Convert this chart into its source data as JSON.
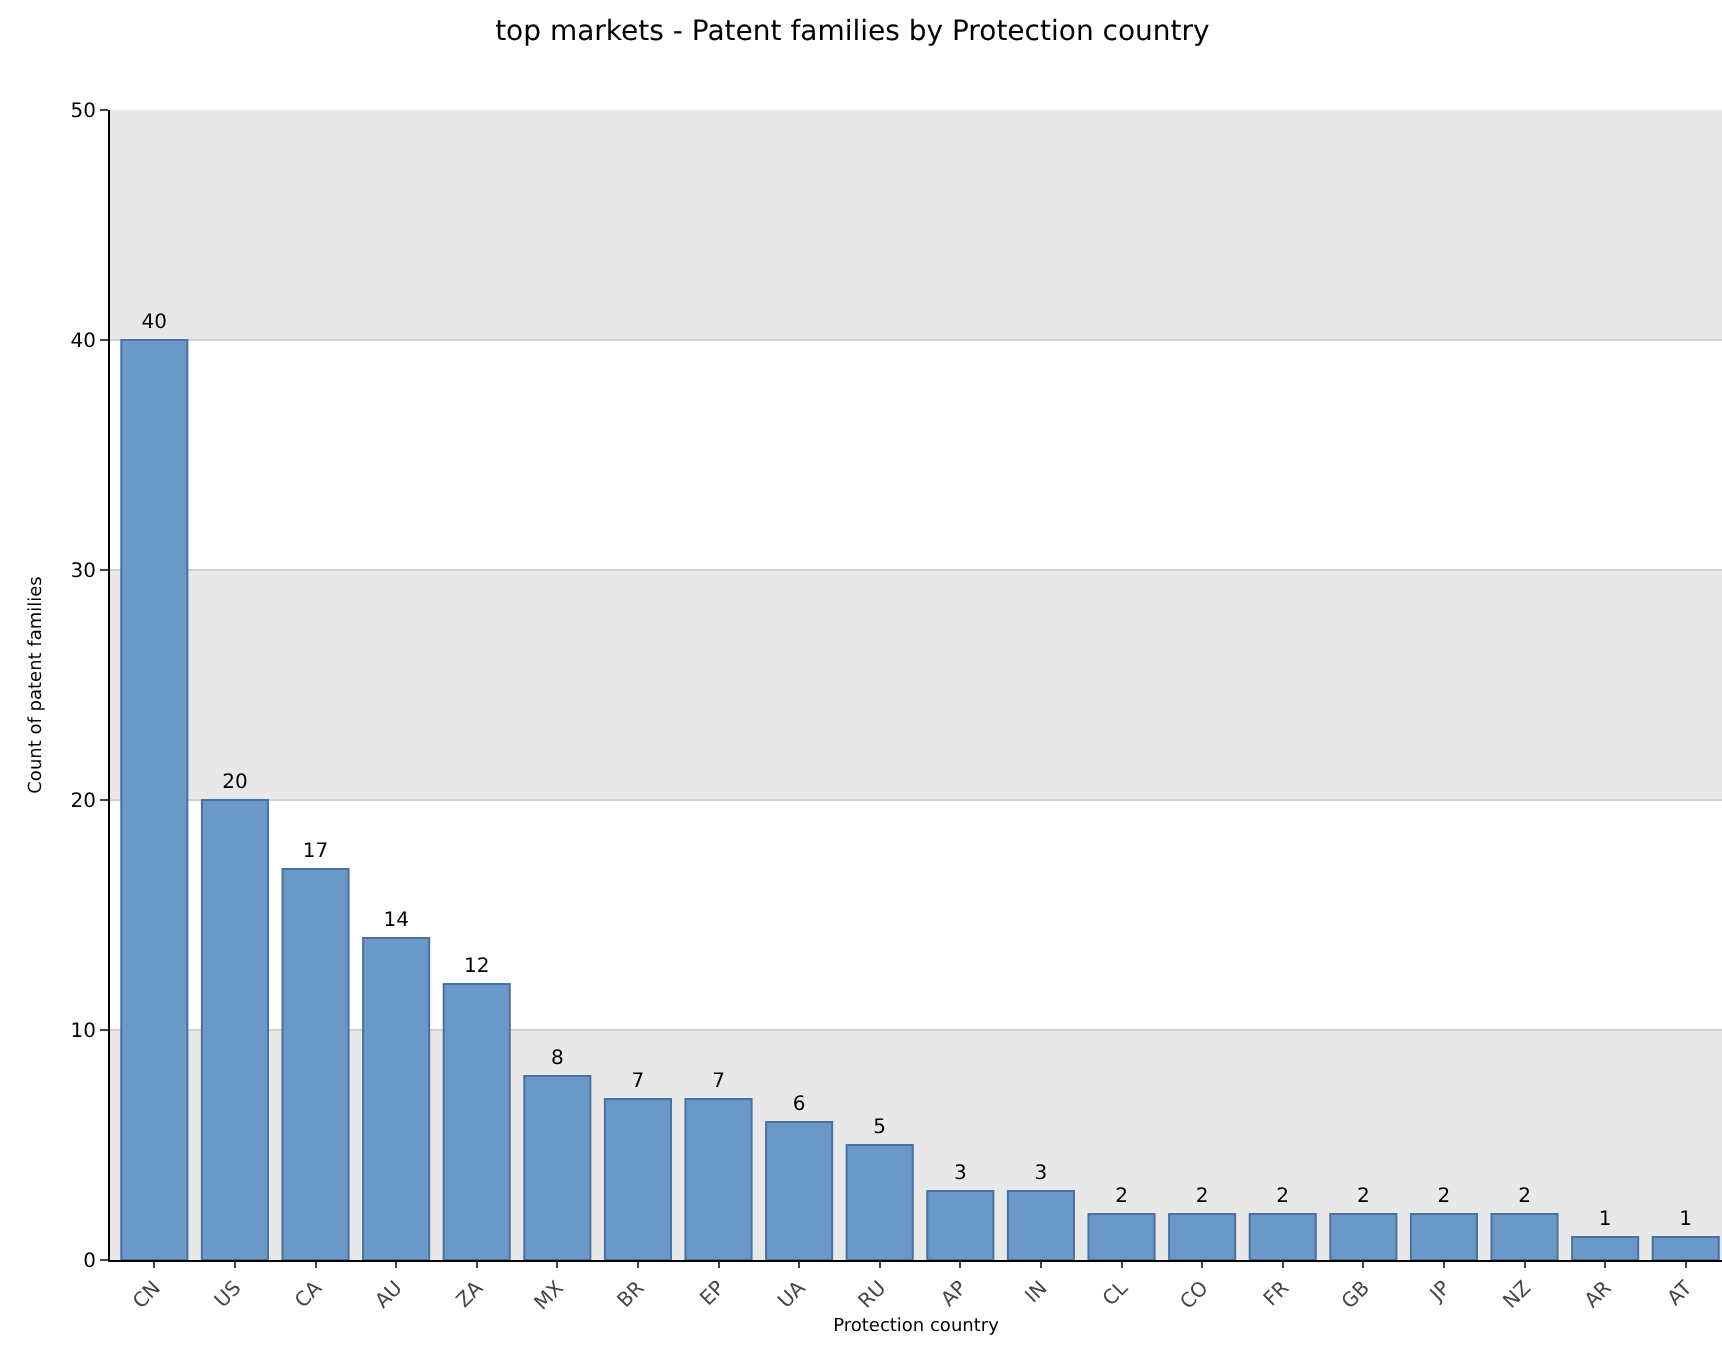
{
  "chart_data": {
    "type": "bar",
    "title": "top markets - Patent families by Protection country",
    "xlabel": "Protection country",
    "ylabel": "Count of patent families",
    "categories": [
      "CN",
      "US",
      "CA",
      "AU",
      "ZA",
      "MX",
      "BR",
      "EP",
      "UA",
      "RU",
      "AP",
      "IN",
      "CL",
      "CO",
      "FR",
      "GB",
      "JP",
      "NZ",
      "AR",
      "AT"
    ],
    "values": [
      40,
      20,
      17,
      14,
      12,
      8,
      7,
      7,
      6,
      5,
      3,
      3,
      2,
      2,
      2,
      2,
      2,
      2,
      1,
      1
    ],
    "color": "#6a98c8",
    "ylim": [
      0,
      50
    ],
    "yticks": [
      0,
      10,
      20,
      30,
      40,
      50
    ],
    "grid": "y",
    "data_labels": true,
    "bands": [
      {
        "axis": "y",
        "from": 0,
        "to": 10,
        "color": "#e8e8e8"
      },
      {
        "axis": "y",
        "from": 20,
        "to": 30,
        "color": "#e8e8e8"
      },
      {
        "axis": "y",
        "from": 40,
        "to": 50,
        "color": "#e8e8e8"
      }
    ]
  }
}
